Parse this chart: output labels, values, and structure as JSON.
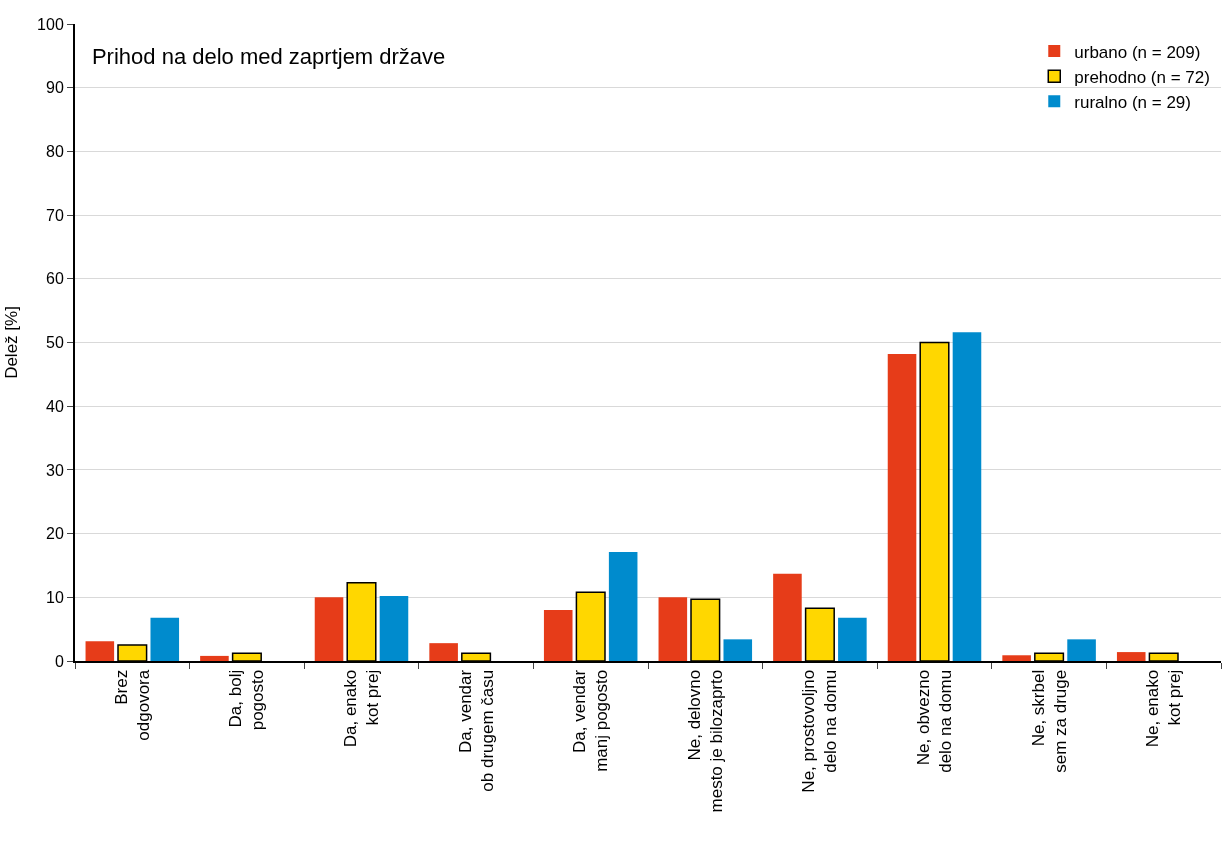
{
  "chart_data": {
    "type": "bar",
    "title": "Prihod na delo med zaprtjem države",
    "ylabel": "Delež [%]",
    "categories": [
      "Brez\nodgovora",
      "Da, bolj\npogosto",
      "Da, enako\nkot prej",
      "Da, vendar\nob drugem času",
      "Da, vendar\nmanj pogosto",
      "Ne, delovno\nmesto je bilozaprto",
      "Ne, prostovoljno\ndelo na domu",
      "Ne, obvezno\ndelo na domu",
      "Ne, skrbel\nsem za druge",
      "Ne, enako\nkot prej"
    ],
    "series": [
      {
        "name": "urbano (n = 209)",
        "color": "#e63c19",
        "values": [
          3.1,
          0.8,
          10.0,
          2.8,
          8.0,
          10.0,
          13.7,
          48.2,
          0.9,
          1.4
        ]
      },
      {
        "name": "prehodno (n = 72)",
        "color": "#ffd700",
        "values": [
          2.5,
          1.2,
          12.3,
          1.2,
          10.8,
          9.7,
          8.3,
          50.0,
          1.2,
          1.2
        ]
      },
      {
        "name": "ruralno (n = 29)",
        "color": "#008bcd",
        "values": [
          6.8,
          0,
          10.2,
          0,
          17.1,
          3.4,
          6.8,
          51.6,
          3.4,
          0
        ]
      }
    ],
    "ylim": [
      0,
      100
    ],
    "yticks": [
      0,
      10,
      20,
      30,
      40,
      50,
      60,
      70,
      80,
      90,
      100
    ],
    "grid": "y",
    "legend": "top right"
  }
}
